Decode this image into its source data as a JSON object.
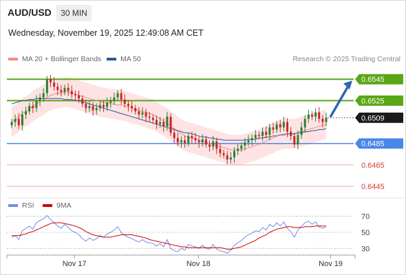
{
  "header": {
    "pair": "AUD/USD",
    "timeframe": "30 MIN",
    "datetime": "Wednesday, November 19, 2025 12:49:08 AM CET"
  },
  "legend": {
    "ma20": {
      "label": "MA 20 + Bollinger Bands",
      "color": "#f28b82"
    },
    "ma50": {
      "label": "MA 50",
      "color": "#2f5597"
    },
    "credit": "Research © 2025 Trading Central"
  },
  "colors": {
    "up": "#2e7d32",
    "down": "#c62828",
    "resistance": "#5aa616",
    "support": "#4a86e8",
    "minor_support": "#f4a3a3",
    "band_fill": "#fde3e3",
    "arrow": "#2f67b1",
    "rsi": "#6f8fe0",
    "rsi_ma": "#cc0000"
  },
  "chart_data": [
    {
      "type": "candlestick",
      "x_ticks": [
        "Nov 17",
        "Nov 18",
        "Nov 19"
      ],
      "ylim": [
        0.6436,
        0.6558
      ],
      "last_price": 0.6509,
      "target": 0.6545,
      "levels": [
        {
          "value": 0.6545,
          "kind": "resistance",
          "label": "0.6545"
        },
        {
          "value": 0.6525,
          "kind": "resistance",
          "label": "0.6525"
        },
        {
          "value": 0.6509,
          "kind": "current",
          "label": "0.6509"
        },
        {
          "value": 0.6485,
          "kind": "support",
          "label": "0.6485"
        },
        {
          "value": 0.6465,
          "kind": "minor_support",
          "label": "0.6465"
        },
        {
          "value": 0.6445,
          "kind": "minor_support",
          "label": "0.6445"
        }
      ],
      "closes": [
        0.6505,
        0.6508,
        0.6502,
        0.6512,
        0.6515,
        0.652,
        0.6518,
        0.6525,
        0.6528,
        0.6532,
        0.6545,
        0.6542,
        0.6538,
        0.6535,
        0.6533,
        0.6537,
        0.6534,
        0.6531,
        0.653,
        0.6527,
        0.6522,
        0.6518,
        0.652,
        0.6516,
        0.6518,
        0.6521,
        0.6519,
        0.6523,
        0.6525,
        0.6528,
        0.6532,
        0.6526,
        0.6522,
        0.652,
        0.6518,
        0.6515,
        0.6512,
        0.6514,
        0.651,
        0.6509,
        0.6507,
        0.6503,
        0.6505,
        0.6501,
        0.651,
        0.6495,
        0.649,
        0.6486,
        0.6488,
        0.6485,
        0.6492,
        0.649,
        0.6488,
        0.6486,
        0.6489,
        0.6484,
        0.6482,
        0.6487,
        0.648,
        0.6476,
        0.6474,
        0.647,
        0.6472,
        0.6478,
        0.648,
        0.6483,
        0.6486,
        0.6488,
        0.649,
        0.6493,
        0.6492,
        0.6496,
        0.6493,
        0.65,
        0.6498,
        0.6503,
        0.65,
        0.6505,
        0.6496,
        0.6492,
        0.6484,
        0.6493,
        0.65,
        0.6508,
        0.6512,
        0.651,
        0.6514,
        0.6508,
        0.6505,
        0.6509
      ],
      "ma20": [
        0.6505,
        0.6507,
        0.651,
        0.6513,
        0.6515,
        0.6517,
        0.652,
        0.6522,
        0.6524,
        0.6526,
        0.6528,
        0.653,
        0.6531,
        0.6532,
        0.6532,
        0.6533,
        0.6533,
        0.6532,
        0.6531,
        0.653,
        0.6529,
        0.6528,
        0.6527,
        0.6526,
        0.6525,
        0.6524,
        0.6523,
        0.6523,
        0.6522,
        0.6522,
        0.6521,
        0.6521,
        0.652,
        0.6519,
        0.6518,
        0.6517,
        0.6516,
        0.6515,
        0.6514,
        0.6513,
        0.6512,
        0.651,
        0.6508,
        0.6506,
        0.6504,
        0.6501,
        0.6499,
        0.6496,
        0.6494,
        0.6492,
        0.6491,
        0.649,
        0.6489,
        0.6488,
        0.6487,
        0.6486,
        0.6485,
        0.6484,
        0.6483,
        0.6482,
        0.6481,
        0.648,
        0.6479,
        0.6479,
        0.6479,
        0.6479,
        0.648,
        0.6481,
        0.6482,
        0.6483,
        0.6484,
        0.6486,
        0.6487,
        0.6489,
        0.649,
        0.6492,
        0.6493,
        0.6494,
        0.6494,
        0.6494,
        0.6494,
        0.6495,
        0.6496,
        0.6497,
        0.6498,
        0.6499,
        0.65,
        0.6501,
        0.6502,
        0.6503
      ],
      "ma50": [
        0.6522,
        0.6523,
        0.6524,
        0.6525,
        0.6525,
        0.6526,
        0.6526,
        0.6527,
        0.6527,
        0.6527,
        0.6527,
        0.6527,
        0.6527,
        0.6527,
        0.6527,
        0.6526,
        0.6526,
        0.6526,
        0.6525,
        0.6525,
        0.6524,
        0.6523,
        0.6522,
        0.6521,
        0.652,
        0.6519,
        0.6518,
        0.6517,
        0.6516,
        0.6515,
        0.6514,
        0.6513,
        0.6512,
        0.6511,
        0.651,
        0.6509,
        0.6508,
        0.6507,
        0.6506,
        0.6505,
        0.6504,
        0.6503,
        0.6502,
        0.6501,
        0.65,
        0.6499,
        0.6498,
        0.6497,
        0.6496,
        0.6495,
        0.6495,
        0.6494,
        0.6493,
        0.6492,
        0.6491,
        0.6491,
        0.649,
        0.649,
        0.6489,
        0.6489,
        0.6488,
        0.6488,
        0.6488,
        0.6488,
        0.6488,
        0.6488,
        0.6488,
        0.6489,
        0.6489,
        0.6489,
        0.649,
        0.649,
        0.6491,
        0.6491,
        0.6492,
        0.6492,
        0.6493,
        0.6493,
        0.6494,
        0.6494,
        0.6494,
        0.6495,
        0.6495,
        0.6496,
        0.6496,
        0.6497,
        0.6497,
        0.6498,
        0.6498,
        0.6499
      ],
      "band_width": 0.0014
    },
    {
      "type": "line",
      "title": "RSI",
      "series": [
        {
          "name": "RSI",
          "values": [
            44,
            46,
            41,
            52,
            55,
            58,
            54,
            62,
            65,
            67,
            71,
            66,
            62,
            58,
            55,
            60,
            56,
            52,
            50,
            47,
            42,
            39,
            43,
            40,
            42,
            46,
            44,
            48,
            50,
            53,
            57,
            50,
            46,
            44,
            42,
            40,
            38,
            41,
            38,
            37,
            36,
            33,
            36,
            32,
            41,
            30,
            27,
            26,
            30,
            28,
            35,
            33,
            32,
            30,
            34,
            30,
            29,
            35,
            29,
            27,
            26,
            24,
            28,
            34,
            37,
            40,
            44,
            47,
            49,
            52,
            51,
            56,
            53,
            60,
            57,
            62,
            58,
            63,
            55,
            51,
            44,
            53,
            58,
            62,
            64,
            60,
            63,
            57,
            55,
            57
          ]
        },
        {
          "name": "9MA",
          "values": [
            46,
            46,
            46,
            47,
            48,
            50,
            51,
            53,
            55,
            57,
            59,
            61,
            62,
            62,
            62,
            61,
            60,
            59,
            58,
            56,
            54,
            51,
            49,
            47,
            46,
            45,
            44,
            44,
            44,
            45,
            46,
            47,
            47,
            47,
            47,
            46,
            45,
            44,
            43,
            41,
            40,
            39,
            38,
            37,
            36,
            35,
            34,
            33,
            32,
            32,
            31,
            31,
            31,
            31,
            31,
            31,
            31,
            31,
            31,
            31,
            30,
            29,
            29,
            30,
            31,
            32,
            34,
            36,
            38,
            40,
            43,
            45,
            47,
            50,
            52,
            54,
            55,
            56,
            57,
            57,
            56,
            56,
            56,
            57,
            57,
            57,
            58,
            58,
            58,
            58
          ]
        }
      ],
      "y_ticks": [
        "70",
        "50",
        "30"
      ],
      "ylim": [
        20,
        80
      ]
    }
  ]
}
